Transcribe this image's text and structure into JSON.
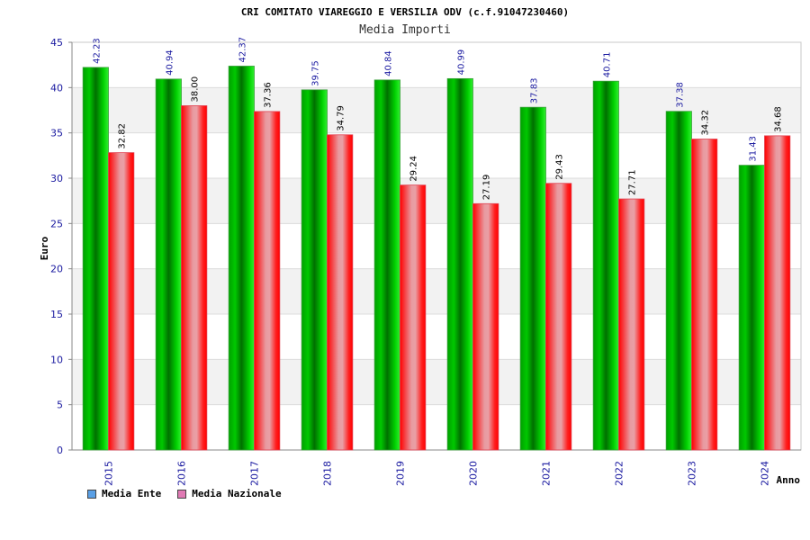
{
  "chart_data": {
    "type": "bar",
    "title": "CRI COMITATO VIAREGGIO E VERSILIA ODV (c.f.91047230460)",
    "subtitle": "Media Importi",
    "xlabel": "Anno",
    "ylabel": "Euro",
    "ylim": [
      0,
      45
    ],
    "yticks": [
      0,
      5,
      10,
      15,
      20,
      25,
      30,
      35,
      40,
      45
    ],
    "categories": [
      "2015",
      "2016",
      "2017",
      "2018",
      "2019",
      "2020",
      "2021",
      "2022",
      "2023",
      "2024"
    ],
    "series": [
      {
        "name": "Media Ente",
        "values": [
          42.23,
          40.94,
          42.37,
          39.75,
          40.84,
          40.99,
          37.83,
          40.71,
          37.38,
          31.43
        ],
        "labels": [
          "42.23",
          "40.94",
          "42.37",
          "39.75",
          "40.84",
          "40.99",
          "37.83",
          "40.71",
          "37.38",
          "31.43"
        ],
        "color": "#00b400",
        "legend_color": "#5aa0e6"
      },
      {
        "name": "Media Nazionale",
        "values": [
          32.82,
          38.0,
          37.36,
          34.79,
          29.24,
          27.19,
          29.43,
          27.71,
          34.32,
          34.68
        ],
        "labels": [
          "32.82",
          "38.00",
          "37.36",
          "34.79",
          "29.24",
          "27.19",
          "29.43",
          "27.71",
          "34.32",
          "34.68"
        ],
        "color": "#e6001e",
        "legend_color": "#e07ab4"
      }
    ],
    "grid": true,
    "legend_position": "bottom-left"
  }
}
